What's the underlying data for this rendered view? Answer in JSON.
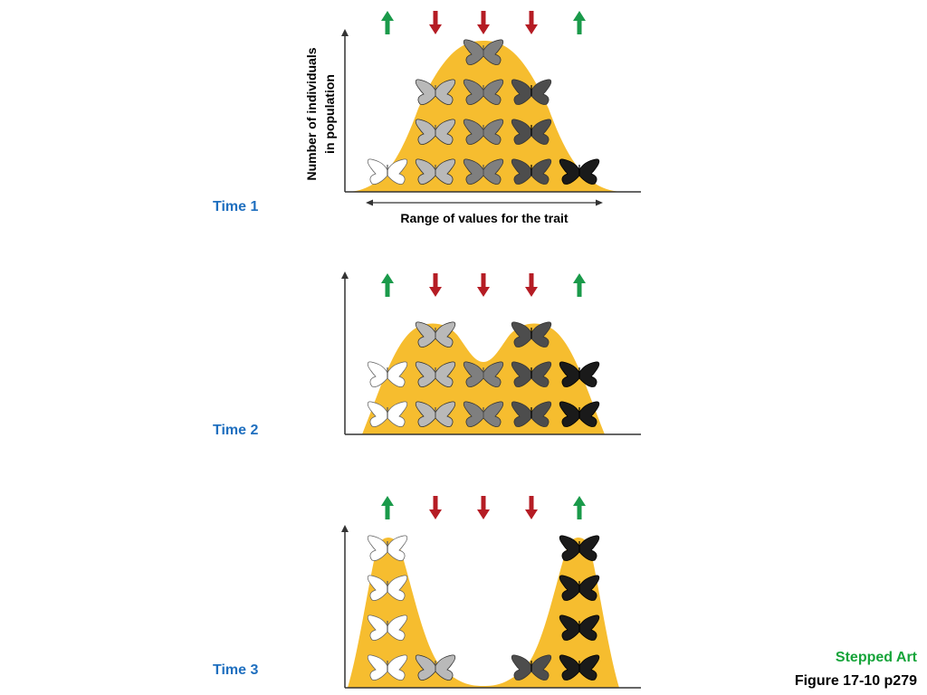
{
  "colors": {
    "curve": "#f6bd2f",
    "arrow_up": "#1a9a4a",
    "arrow_down": "#b51c24",
    "time_label": "#1f6fbf",
    "stepped_art": "#16a43a",
    "figure_ref": "#000000",
    "axis": "#333333"
  },
  "axis_labels": {
    "y_line1": "Number of individuals",
    "y_line2": "in population",
    "x": "Range of values for the trait"
  },
  "panels": [
    {
      "label": "Time 1",
      "arrows": [
        "up",
        "down",
        "down",
        "down",
        "up"
      ],
      "counts": [
        1,
        3,
        4,
        3,
        1
      ],
      "curve_shape": "single-peak"
    },
    {
      "label": "Time 2",
      "arrows": [
        "up",
        "down",
        "down",
        "down",
        "up"
      ],
      "counts": [
        2,
        3,
        2,
        3,
        2
      ],
      "curve_shape": "two-peaks-shallow"
    },
    {
      "label": "Time 3",
      "arrows": [
        "up",
        "down",
        "down",
        "down",
        "up"
      ],
      "counts": [
        4,
        1,
        0,
        1,
        4
      ],
      "curve_shape": "two-peaks-deep"
    }
  ],
  "butterfly_shades": [
    "#ffffff",
    "#b9b9b9",
    "#7f7f7f",
    "#4d4d4d",
    "#1a1a1a"
  ],
  "footer": {
    "stepped_art": "Stepped Art",
    "figure_ref": "Figure 17-10 p279"
  }
}
